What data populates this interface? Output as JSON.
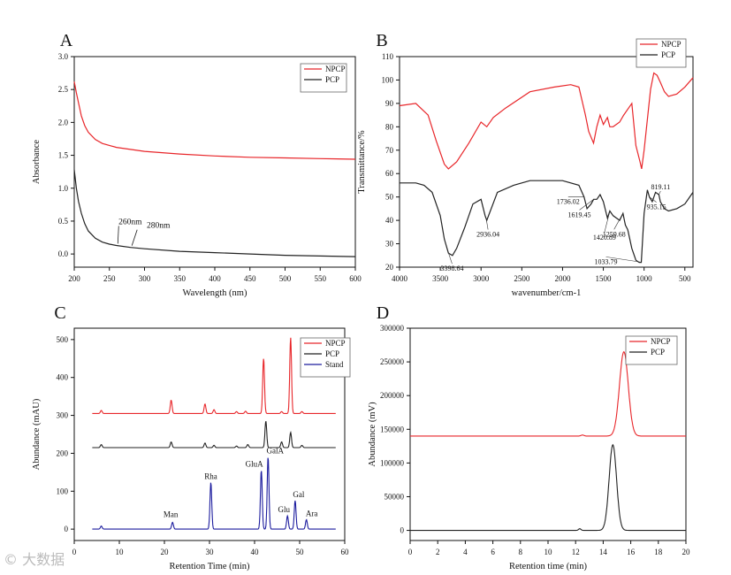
{
  "panels": [
    {
      "letter": "A"
    },
    {
      "letter": "B"
    },
    {
      "letter": "C"
    },
    {
      "letter": "D"
    }
  ],
  "chart_data": [
    {
      "id": "A",
      "type": "line",
      "xlabel": "Wavelength (nm)",
      "ylabel": "Absorbance",
      "xlim": [
        200,
        600
      ],
      "ylim": [
        -0.2,
        3.0
      ],
      "xticks": [
        200,
        250,
        300,
        350,
        400,
        450,
        500,
        550,
        600
      ],
      "yticks": [
        0.0,
        0.5,
        1.0,
        1.5,
        2.0,
        2.5,
        3.0
      ],
      "legend": {
        "position": "top-right",
        "entries": [
          {
            "name": "NPCP",
            "color": "#e8262a"
          },
          {
            "name": "PCP",
            "color": "#222222"
          }
        ]
      },
      "series": [
        {
          "name": "NPCP",
          "color": "#e8262a",
          "x": [
            200,
            203,
            206,
            210,
            215,
            220,
            230,
            240,
            260,
            280,
            300,
            350,
            400,
            450,
            500,
            550,
            600
          ],
          "y": [
            2.62,
            2.45,
            2.3,
            2.1,
            1.95,
            1.85,
            1.74,
            1.68,
            1.62,
            1.59,
            1.56,
            1.52,
            1.49,
            1.47,
            1.46,
            1.45,
            1.44
          ]
        },
        {
          "name": "PCP",
          "color": "#222222",
          "x": [
            200,
            203,
            206,
            210,
            215,
            220,
            230,
            240,
            250,
            260,
            280,
            300,
            350,
            400,
            450,
            500,
            550,
            600
          ],
          "y": [
            1.28,
            1.0,
            0.8,
            0.62,
            0.46,
            0.35,
            0.24,
            0.18,
            0.15,
            0.13,
            0.1,
            0.08,
            0.04,
            0.02,
            0.0,
            -0.02,
            -0.03,
            -0.04
          ]
        }
      ],
      "annotations": [
        {
          "text": "260nm",
          "x": 262,
          "y": 0.13,
          "dir": "up"
        },
        {
          "text": "280nm",
          "x": 282,
          "y": 0.1,
          "dir": "up"
        }
      ]
    },
    {
      "id": "B",
      "type": "line",
      "xlabel": "wavenumber/cm-1",
      "ylabel": "Transmittance/%",
      "xlim": [
        4000,
        400
      ],
      "ylim": [
        20,
        110
      ],
      "xticks": [
        4000,
        3500,
        3000,
        2500,
        2000,
        1500,
        1000,
        500
      ],
      "yticks": [
        20,
        30,
        40,
        50,
        60,
        70,
        80,
        90,
        100,
        110
      ],
      "legend": {
        "position": "top-right",
        "entries": [
          {
            "name": "NPCP",
            "color": "#e8262a"
          },
          {
            "name": "PCP",
            "color": "#222222"
          }
        ]
      },
      "series": [
        {
          "name": "NPCP",
          "color": "#e8262a",
          "x": [
            4000,
            3800,
            3650,
            3550,
            3450,
            3400,
            3300,
            3150,
            3000,
            2930,
            2850,
            2700,
            2400,
            2100,
            1900,
            1800,
            1720,
            1680,
            1620,
            1580,
            1540,
            1500,
            1450,
            1420,
            1380,
            1300,
            1250,
            1150,
            1100,
            1050,
            1030,
            1000,
            920,
            880,
            840,
            800,
            750,
            700,
            600,
            500,
            400
          ],
          "y": [
            89,
            90,
            85,
            74,
            64,
            62,
            65,
            73,
            82,
            80,
            84,
            88,
            95,
            97,
            98,
            97,
            85,
            78,
            73,
            80,
            85,
            81,
            84,
            80,
            80,
            82,
            85,
            90,
            72,
            65,
            62,
            70,
            96,
            103,
            102,
            99,
            95,
            93,
            94,
            97,
            101
          ]
        },
        {
          "name": "PCP",
          "color": "#222222",
          "x": [
            4000,
            3800,
            3700,
            3600,
            3500,
            3450,
            3400,
            3350,
            3300,
            3200,
            3100,
            3000,
            2950,
            2930,
            2800,
            2600,
            2400,
            2200,
            2000,
            1800,
            1736,
            1700,
            1650,
            1619,
            1580,
            1540,
            1500,
            1450,
            1420,
            1380,
            1300,
            1259,
            1230,
            1200,
            1150,
            1100,
            1060,
            1034,
            1000,
            960,
            935,
            900,
            860,
            819,
            800,
            750,
            700,
            600,
            500,
            400
          ],
          "y": [
            56,
            56,
            55,
            52,
            42,
            32,
            26,
            25,
            28,
            37,
            47,
            49,
            42,
            40,
            52,
            55,
            57,
            57,
            57,
            55,
            50,
            45,
            47,
            49,
            49,
            51,
            48,
            41,
            44,
            42,
            40,
            43,
            38,
            36,
            28,
            23,
            22,
            22,
            43,
            53,
            50,
            48,
            52,
            51,
            48,
            45,
            44,
            45,
            47,
            52
          ]
        }
      ],
      "annotations": [
        {
          "text": "3398.64",
          "x": 3398.64
        },
        {
          "text": "2936.04",
          "x": 2936.04
        },
        {
          "text": "1736.02",
          "x": 1736.02
        },
        {
          "text": "1619.45",
          "x": 1619.45
        },
        {
          "text": "1420.89",
          "x": 1420.89
        },
        {
          "text": "1259.68",
          "x": 1259.68
        },
        {
          "text": "1033.79",
          "x": 1033.79
        },
        {
          "text": "935.15",
          "x": 935.15
        },
        {
          "text": "819.11",
          "x": 819.11
        }
      ]
    },
    {
      "id": "C",
      "type": "line",
      "xlabel": "Retention Time (min)",
      "ylabel": "Abundance (mAU)",
      "xlim": [
        0,
        60
      ],
      "ylim": [
        -30,
        530
      ],
      "xticks": [
        0,
        10,
        20,
        30,
        40,
        50,
        60
      ],
      "yticks": [
        0,
        100,
        200,
        300,
        400,
        500
      ],
      "legend": {
        "position": "top-right",
        "entries": [
          {
            "name": "NPCP",
            "color": "#e8262a"
          },
          {
            "name": "PCP",
            "color": "#222222"
          },
          {
            "name": "Stand",
            "color": "#1c1c9e"
          }
        ]
      },
      "series": [
        {
          "name": "NPCP",
          "color": "#e8262a",
          "baseline": 305,
          "peaks": [
            [
              6,
              8
            ],
            [
              21.5,
              35
            ],
            [
              29,
              25
            ],
            [
              31,
              10
            ],
            [
              36,
              5
            ],
            [
              38,
              6
            ],
            [
              42,
              145
            ],
            [
              46,
              5
            ],
            [
              48,
              200
            ],
            [
              50.5,
              5
            ]
          ]
        },
        {
          "name": "PCP",
          "color": "#222222",
          "baseline": 215,
          "peaks": [
            [
              6,
              8
            ],
            [
              21.5,
              15
            ],
            [
              29,
              12
            ],
            [
              31,
              6
            ],
            [
              36,
              4
            ],
            [
              38.5,
              8
            ],
            [
              42.5,
              70
            ],
            [
              46,
              15
            ],
            [
              48,
              40
            ],
            [
              50.5,
              6
            ]
          ]
        },
        {
          "name": "Stand",
          "color": "#1c1c9e",
          "baseline": 0,
          "peaks": [
            [
              6,
              8
            ],
            [
              21.8,
              18
            ],
            [
              30.3,
              123
            ],
            [
              41.5,
              155
            ],
            [
              43,
              190
            ],
            [
              47.3,
              35
            ],
            [
              49,
              75
            ],
            [
              51.5,
              25
            ]
          ]
        }
      ],
      "annotations": [
        {
          "text": "Man",
          "x": 21.8,
          "y": 18
        },
        {
          "text": "Rha",
          "x": 30.3,
          "y": 123
        },
        {
          "text": "GluA",
          "x": 41.5,
          "y": 155
        },
        {
          "text": "GalA",
          "x": 43,
          "y": 190
        },
        {
          "text": "Glu",
          "x": 47.3,
          "y": 35
        },
        {
          "text": "Gal",
          "x": 49,
          "y": 75
        },
        {
          "text": "Ara",
          "x": 51.5,
          "y": 25
        }
      ]
    },
    {
      "id": "D",
      "type": "line",
      "xlabel": "Retention time (min)",
      "ylabel": "Abundance (mV)",
      "xlim": [
        0,
        20
      ],
      "ylim": [
        -15000,
        300000
      ],
      "xticks": [
        0,
        2,
        4,
        6,
        8,
        10,
        12,
        14,
        16,
        18,
        20
      ],
      "yticks": [
        0,
        50000,
        100000,
        150000,
        200000,
        250000,
        300000
      ],
      "legend": {
        "position": "top-right",
        "entries": [
          {
            "name": "NPCP",
            "color": "#e8262a"
          },
          {
            "name": "PCP",
            "color": "#222222"
          }
        ]
      },
      "series": [
        {
          "name": "NPCP",
          "color": "#e8262a",
          "baseline": 140000,
          "peaks": [
            [
              12.5,
              1500,
              0.15
            ],
            [
              15.5,
              125000,
              0.45
            ]
          ]
        },
        {
          "name": "PCP",
          "color": "#222222",
          "baseline": 0,
          "peaks": [
            [
              12.3,
              2500,
              0.12
            ],
            [
              14.7,
              127000,
              0.38
            ]
          ]
        }
      ]
    }
  ]
}
